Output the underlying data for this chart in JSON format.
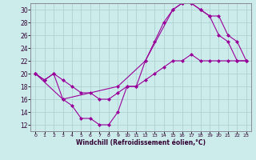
{
  "xlabel": "Windchill (Refroidissement éolien,°C)",
  "bg_color": "#ccecec",
  "line_color": "#990099",
  "xlim": [
    -0.5,
    23.5
  ],
  "ylim": [
    11,
    31
  ],
  "xticks": [
    0,
    1,
    2,
    3,
    4,
    5,
    6,
    7,
    8,
    9,
    10,
    11,
    12,
    13,
    14,
    15,
    16,
    17,
    18,
    19,
    20,
    21,
    22,
    23
  ],
  "yticks": [
    12,
    14,
    16,
    18,
    20,
    22,
    24,
    26,
    28,
    30
  ],
  "line1_x": [
    0,
    1,
    2,
    3,
    4,
    5,
    6,
    7,
    8,
    9,
    10,
    11,
    12,
    13,
    14,
    15,
    16,
    17,
    18,
    19,
    20,
    21,
    22,
    23
  ],
  "line1_y": [
    20,
    19,
    20,
    16,
    15,
    13,
    13,
    12,
    12,
    14,
    18,
    18,
    22,
    25,
    28,
    30,
    31,
    31,
    30,
    29,
    26,
    25,
    22,
    22
  ],
  "line2_x": [
    0,
    3,
    9,
    12,
    15,
    16,
    17,
    18,
    19,
    20,
    21,
    22,
    23
  ],
  "line2_y": [
    20,
    16,
    18,
    22,
    30,
    31,
    31,
    30,
    29,
    29,
    26,
    25,
    22
  ],
  "line3_x": [
    0,
    1,
    2,
    3,
    4,
    5,
    6,
    7,
    8,
    9,
    10,
    11,
    12,
    13,
    14,
    15,
    16,
    17,
    18,
    19,
    20,
    21,
    22,
    23
  ],
  "line3_y": [
    20,
    19,
    20,
    19,
    18,
    17,
    17,
    16,
    16,
    17,
    18,
    18,
    19,
    20,
    21,
    22,
    22,
    23,
    22,
    22,
    22,
    22,
    22,
    22
  ]
}
